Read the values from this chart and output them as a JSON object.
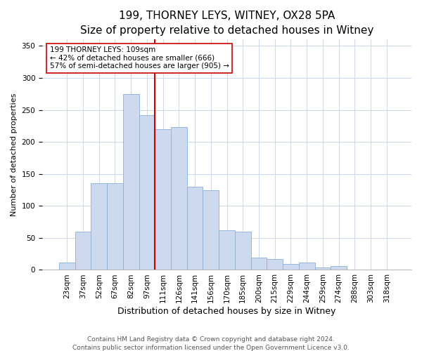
{
  "title": "199, THORNEY LEYS, WITNEY, OX28 5PA",
  "subtitle": "Size of property relative to detached houses in Witney",
  "xlabel": "Distribution of detached houses by size in Witney",
  "ylabel": "Number of detached properties",
  "bar_labels": [
    "23sqm",
    "37sqm",
    "52sqm",
    "67sqm",
    "82sqm",
    "97sqm",
    "111sqm",
    "126sqm",
    "141sqm",
    "156sqm",
    "170sqm",
    "185sqm",
    "200sqm",
    "215sqm",
    "229sqm",
    "244sqm",
    "259sqm",
    "274sqm",
    "288sqm",
    "303sqm",
    "318sqm"
  ],
  "bar_values": [
    11,
    60,
    135,
    135,
    275,
    242,
    220,
    223,
    130,
    124,
    62,
    60,
    19,
    17,
    9,
    11,
    4,
    6,
    0,
    0,
    0
  ],
  "bar_color": "#ccd9ee",
  "bar_edge_color": "#8ab0d8",
  "vline_x_idx": 6,
  "vline_color": "#cc0000",
  "annotation_line1": "199 THORNEY LEYS: 109sqm",
  "annotation_line2": "← 42% of detached houses are smaller (666)",
  "annotation_line3": "57% of semi-detached houses are larger (905) →",
  "ylim": [
    0,
    360
  ],
  "yticks": [
    0,
    50,
    100,
    150,
    200,
    250,
    300,
    350
  ],
  "footer1": "Contains HM Land Registry data © Crown copyright and database right 2024.",
  "footer2": "Contains public sector information licensed under the Open Government Licence v3.0.",
  "title_fontsize": 11,
  "subtitle_fontsize": 9.5,
  "xlabel_fontsize": 9,
  "ylabel_fontsize": 8,
  "tick_fontsize": 7.5,
  "footer_fontsize": 6.5
}
